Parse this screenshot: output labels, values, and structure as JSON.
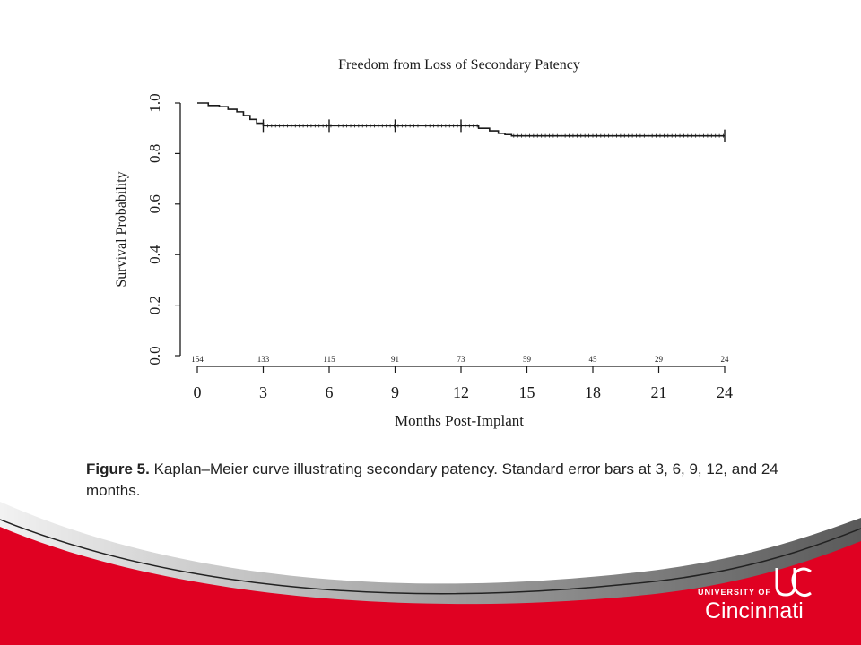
{
  "colors": {
    "red": "#e00122",
    "ink": "#1a1a1a",
    "footer_gray": "#8a8a8a"
  },
  "chart_data": {
    "type": "line",
    "title": "Freedom from Loss of Secondary Patency",
    "xlabel": "Months Post-Implant",
    "ylabel": "Survival Probability",
    "xlim": [
      0,
      24
    ],
    "ylim": [
      0.0,
      1.0
    ],
    "xticks": [
      "0",
      "3",
      "6",
      "9",
      "12",
      "15",
      "18",
      "21",
      "24"
    ],
    "yticks": [
      "0.0",
      "0.2",
      "0.4",
      "0.6",
      "0.8",
      "1.0"
    ],
    "series": [
      {
        "x": [
          0,
          0.5,
          1.0,
          1.4,
          1.8,
          2.1,
          2.4,
          2.7,
          3.0,
          12.8,
          13.3,
          13.7,
          14.0,
          14.3,
          24
        ],
        "y": [
          1.0,
          0.99,
          0.985,
          0.975,
          0.965,
          0.95,
          0.935,
          0.92,
          0.91,
          0.9,
          0.89,
          0.88,
          0.875,
          0.87,
          0.87
        ]
      }
    ],
    "error_bars": [
      {
        "x": 3,
        "y": 0.91
      },
      {
        "x": 6,
        "y": 0.91
      },
      {
        "x": 9,
        "y": 0.91
      },
      {
        "x": 12,
        "y": 0.91
      },
      {
        "x": 24,
        "y": 0.87
      }
    ],
    "at_risk": {
      "x": [
        0,
        3,
        6,
        9,
        12,
        15,
        18,
        21,
        24
      ],
      "labels": [
        "154",
        "133",
        "115",
        "91",
        "73",
        "59",
        "45",
        "29",
        "24"
      ]
    }
  },
  "caption": {
    "label": "Figure 5.",
    "text": "Kaplan–Meier curve illustrating secondary patency. Standard error bars at 3, 6, 9, 12, and 24 months."
  },
  "logo": {
    "university": "UNIVERSITY OF",
    "city": "Cincinnati"
  }
}
